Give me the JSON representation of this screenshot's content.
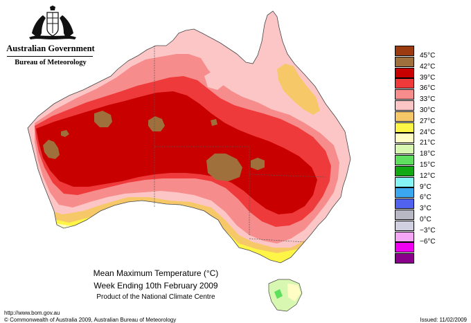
{
  "header": {
    "government": "Australian Government",
    "bureau": "Bureau of Meteorology"
  },
  "map": {
    "title": "Mean Maximum Temperature (°C)",
    "period": "Week Ending 10th February 2009",
    "product": "Product of the National Climate Centre"
  },
  "legend": {
    "items": [
      {
        "label": "45°C",
        "color": "#9c3b10"
      },
      {
        "label": "42°C",
        "color": "#a0703c"
      },
      {
        "label": "39°C",
        "color": "#c80000"
      },
      {
        "label": "36°C",
        "color": "#ee3a3a"
      },
      {
        "label": "33°C",
        "color": "#f78c8c"
      },
      {
        "label": "30°C",
        "color": "#fcc6c6"
      },
      {
        "label": "27°C",
        "color": "#f6c868"
      },
      {
        "label": "24°C",
        "color": "#fff546"
      },
      {
        "label": "21°C",
        "color": "#fffcc4"
      },
      {
        "label": "18°C",
        "color": "#d8f7b0"
      },
      {
        "label": "15°C",
        "color": "#5ee05e"
      },
      {
        "label": "12°C",
        "color": "#12a812"
      },
      {
        "label": "9°C",
        "color": "#86f4f4"
      },
      {
        "label": "6°C",
        "color": "#3aa7ee"
      },
      {
        "label": "3°C",
        "color": "#5062ee"
      },
      {
        "label": "0°C",
        "color": "#b8b8c4"
      },
      {
        "label": "−3°C",
        "color": "#d0d0e0"
      },
      {
        "label": "−6°C",
        "color": "#f5a6f5"
      },
      {
        "label": "",
        "color": "#f000f0"
      },
      {
        "label": "",
        "color": "#8a008a"
      }
    ]
  },
  "footer": {
    "url": "http://www.bom.gov.au",
    "copyright": "© Commonwealth of Australia 2009, Australian Bureau of Meteorology",
    "issued": "Issued: 11/02/2009"
  }
}
